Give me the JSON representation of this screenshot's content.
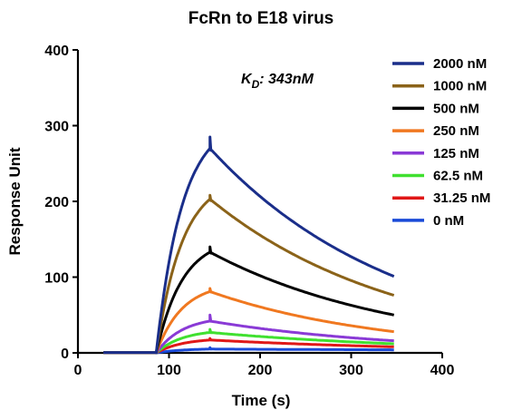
{
  "chart_data": {
    "type": "line",
    "title": "FcRn to E18 virus",
    "xlabel": "Time (s)",
    "ylabel": "Response Unit",
    "xlim": [
      0,
      400
    ],
    "ylim": [
      0,
      400
    ],
    "xticks": [
      0,
      100,
      200,
      300,
      400
    ],
    "yticks": [
      0,
      100,
      200,
      300,
      400
    ],
    "x_tick_labels": [
      "0",
      "100",
      "200",
      "300",
      "400"
    ],
    "y_tick_labels": [
      "0",
      "100",
      "200",
      "300",
      "400"
    ],
    "grid": false,
    "legend_position": "right",
    "annotation": {
      "k": "K",
      "sub": "D",
      "text": ": 343nM"
    },
    "association_start": 86,
    "association_end": 145,
    "end_time": 347,
    "series": [
      {
        "name": "2000 nM",
        "color": "#1a2e8a",
        "peak": 270,
        "spike": 285,
        "end": 101
      },
      {
        "name": "1000 nM",
        "color": "#8b6319",
        "peak": 203,
        "spike": 208,
        "end": 76
      },
      {
        "name": "500 nM",
        "color": "#000000",
        "peak": 133,
        "spike": 140,
        "end": 50
      },
      {
        "name": "250 nM",
        "color": "#f07820",
        "peak": 81,
        "spike": 85,
        "end": 28
      },
      {
        "name": "125 nM",
        "color": "#8a3ad6",
        "peak": 42,
        "spike": 50,
        "end": 16
      },
      {
        "name": "62.5 nM",
        "color": "#40e030",
        "peak": 27,
        "spike": 31,
        "end": 12
      },
      {
        "name": "31.25 nM",
        "color": "#e01818",
        "peak": 17,
        "spike": 19,
        "end": 8
      },
      {
        "name": "0 nM",
        "color": "#1a4ad8",
        "peak": 5,
        "spike": 7,
        "end": 4
      }
    ]
  }
}
